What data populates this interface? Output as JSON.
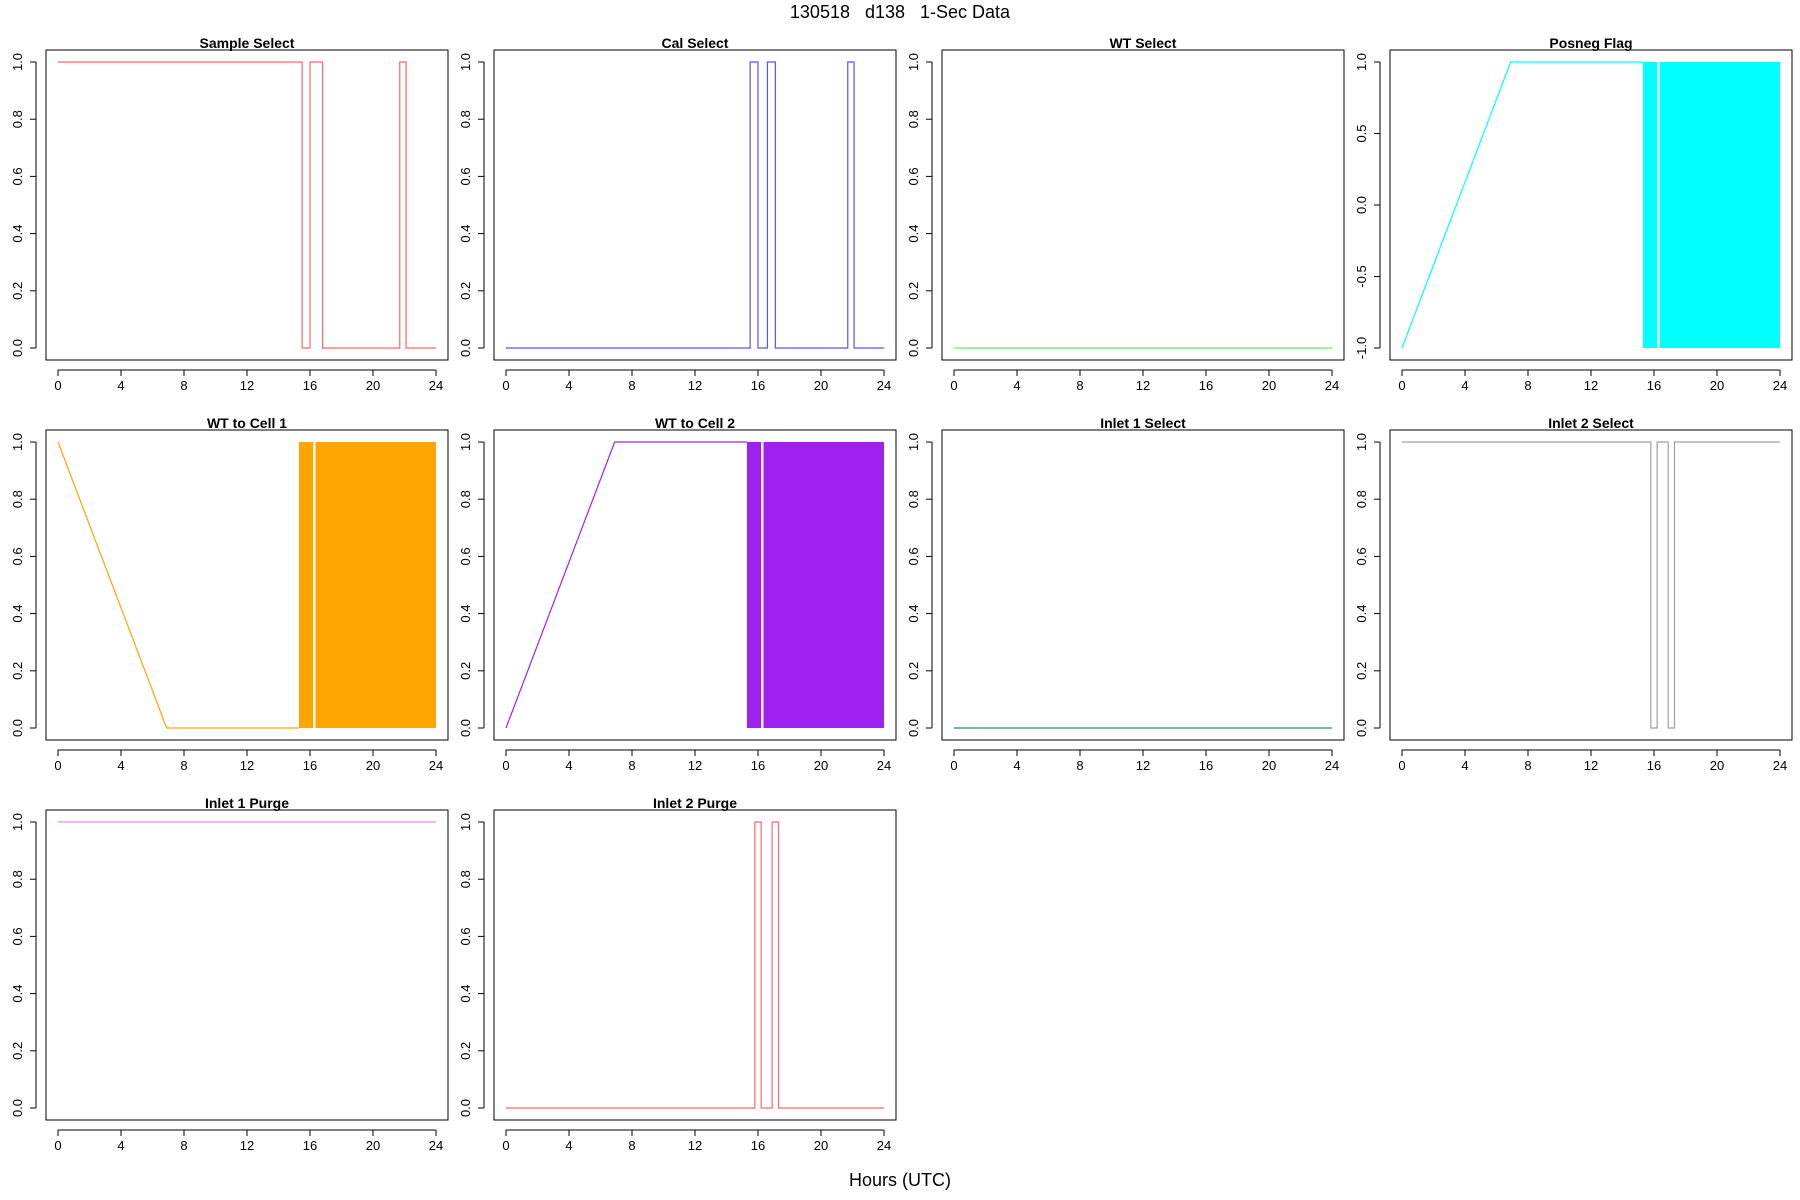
{
  "figure": {
    "title": "130518   d138   1-Sec Data",
    "xlabel": "Hours (UTC)"
  },
  "chart_data": [
    {
      "type": "line",
      "title": "Sample Select",
      "color": "#ff6666",
      "xlim": [
        0,
        24
      ],
      "ylim": [
        0,
        1
      ],
      "xticks": [
        0,
        4,
        8,
        12,
        16,
        20,
        24
      ],
      "yticks": [
        0,
        0.2,
        0.4,
        0.6,
        0.8,
        1.0
      ],
      "ytick_labels": [
        "0.0",
        "0.2",
        "0.4",
        "0.6",
        "0.8",
        "1.0"
      ],
      "series": [
        {
          "x": [
            0,
            15.5,
            15.5,
            16.0,
            16.0,
            16.8,
            16.8,
            21.7,
            21.7,
            22.1,
            22.1,
            24
          ],
          "y": [
            1,
            1,
            0,
            0,
            1,
            1,
            0,
            0,
            1,
            1,
            0,
            0
          ]
        }
      ],
      "bands": []
    },
    {
      "type": "line",
      "title": "Cal Select",
      "color": "#5555ff",
      "xlim": [
        0,
        24
      ],
      "ylim": [
        0,
        1
      ],
      "xticks": [
        0,
        4,
        8,
        12,
        16,
        20,
        24
      ],
      "yticks": [
        0,
        0.2,
        0.4,
        0.6,
        0.8,
        1.0
      ],
      "ytick_labels": [
        "0.0",
        "0.2",
        "0.4",
        "0.6",
        "0.8",
        "1.0"
      ],
      "series": [
        {
          "x": [
            0,
            15.5,
            15.5,
            16.0,
            16.0,
            16.6,
            16.6,
            17.1,
            17.1,
            21.7,
            21.7,
            22.1,
            22.1,
            24
          ],
          "y": [
            0,
            0,
            1,
            1,
            0,
            0,
            1,
            1,
            0,
            0,
            1,
            1,
            0,
            0
          ]
        }
      ],
      "bands": []
    },
    {
      "type": "line",
      "title": "WT Select",
      "color": "#66ee66",
      "xlim": [
        0,
        24
      ],
      "ylim": [
        0,
        1
      ],
      "xticks": [
        0,
        4,
        8,
        12,
        16,
        20,
        24
      ],
      "yticks": [
        0,
        0.2,
        0.4,
        0.6,
        0.8,
        1.0
      ],
      "ytick_labels": [
        "0.0",
        "0.2",
        "0.4",
        "0.6",
        "0.8",
        "1.0"
      ],
      "series": [
        {
          "x": [
            0,
            24
          ],
          "y": [
            0,
            0
          ]
        }
      ],
      "bands": []
    },
    {
      "type": "line",
      "title": "Posneg Flag",
      "color": "#00ffff",
      "xlim": [
        0,
        24
      ],
      "ylim": [
        -1,
        1
      ],
      "xticks": [
        0,
        4,
        8,
        12,
        16,
        20,
        24
      ],
      "yticks": [
        -1,
        -0.5,
        0,
        0.5,
        1
      ],
      "ytick_labels": [
        "-1.0",
        "-0.5",
        "0.0",
        "0.5",
        "1.0"
      ],
      "series": [
        {
          "x": [
            0,
            6.9,
            15.3
          ],
          "y": [
            -1,
            1,
            1
          ]
        }
      ],
      "bands": [
        {
          "x0": 15.3,
          "x1": 16.2,
          "y0": -1,
          "y1": 1
        },
        {
          "x0": 16.35,
          "x1": 24,
          "y0": -1,
          "y1": 1
        }
      ]
    },
    {
      "type": "line",
      "title": "WT to Cell 1",
      "color": "#ffa500",
      "xlim": [
        0,
        24
      ],
      "ylim": [
        0,
        1
      ],
      "xticks": [
        0,
        4,
        8,
        12,
        16,
        20,
        24
      ],
      "yticks": [
        0,
        0.2,
        0.4,
        0.6,
        0.8,
        1.0
      ],
      "ytick_labels": [
        "0.0",
        "0.2",
        "0.4",
        "0.6",
        "0.8",
        "1.0"
      ],
      "series": [
        {
          "x": [
            0,
            6.9,
            15.3
          ],
          "y": [
            1,
            0,
            0
          ]
        }
      ],
      "bands": [
        {
          "x0": 15.3,
          "x1": 16.2,
          "y0": 0,
          "y1": 1
        },
        {
          "x0": 16.35,
          "x1": 24,
          "y0": 0,
          "y1": 1
        }
      ]
    },
    {
      "type": "line",
      "title": "WT to Cell 2",
      "color": "#a020f0",
      "xlim": [
        0,
        24
      ],
      "ylim": [
        0,
        1
      ],
      "xticks": [
        0,
        4,
        8,
        12,
        16,
        20,
        24
      ],
      "yticks": [
        0,
        0.2,
        0.4,
        0.6,
        0.8,
        1.0
      ],
      "ytick_labels": [
        "0.0",
        "0.2",
        "0.4",
        "0.6",
        "0.8",
        "1.0"
      ],
      "series": [
        {
          "x": [
            0,
            6.9,
            15.3
          ],
          "y": [
            0,
            1,
            1
          ]
        }
      ],
      "bands": [
        {
          "x0": 15.3,
          "x1": 16.2,
          "y0": 0,
          "y1": 1
        },
        {
          "x0": 16.35,
          "x1": 24,
          "y0": 0,
          "y1": 1
        }
      ]
    },
    {
      "type": "line",
      "title": "Inlet 1 Select",
      "color": "#2e8b57",
      "xlim": [
        0,
        24
      ],
      "ylim": [
        0,
        1
      ],
      "xticks": [
        0,
        4,
        8,
        12,
        16,
        20,
        24
      ],
      "yticks": [
        0,
        0.2,
        0.4,
        0.6,
        0.8,
        1.0
      ],
      "ytick_labels": [
        "0.0",
        "0.2",
        "0.4",
        "0.6",
        "0.8",
        "1.0"
      ],
      "series": [
        {
          "x": [
            0,
            24
          ],
          "y": [
            0,
            0
          ]
        }
      ],
      "bands": []
    },
    {
      "type": "line",
      "title": "Inlet 2 Select",
      "color": "#a0a0a0",
      "xlim": [
        0,
        24
      ],
      "ylim": [
        0,
        1
      ],
      "xticks": [
        0,
        4,
        8,
        12,
        16,
        20,
        24
      ],
      "yticks": [
        0,
        0.2,
        0.4,
        0.6,
        0.8,
        1.0
      ],
      "ytick_labels": [
        "0.0",
        "0.2",
        "0.4",
        "0.6",
        "0.8",
        "1.0"
      ],
      "series": [
        {
          "x": [
            0,
            15.8,
            15.8,
            16.2,
            16.2,
            16.9,
            16.9,
            17.3,
            17.3,
            24
          ],
          "y": [
            1,
            1,
            0,
            0,
            1,
            1,
            0,
            0,
            1,
            1
          ]
        }
      ],
      "bands": []
    },
    {
      "type": "line",
      "title": "Inlet 1 Purge",
      "color": "#ee88ee",
      "xlim": [
        0,
        24
      ],
      "ylim": [
        0,
        1
      ],
      "xticks": [
        0,
        4,
        8,
        12,
        16,
        20,
        24
      ],
      "yticks": [
        0,
        0.2,
        0.4,
        0.6,
        0.8,
        1.0
      ],
      "ytick_labels": [
        "0.0",
        "0.2",
        "0.4",
        "0.6",
        "0.8",
        "1.0"
      ],
      "series": [
        {
          "x": [
            0,
            24
          ],
          "y": [
            1,
            1
          ]
        }
      ],
      "bands": []
    },
    {
      "type": "line",
      "title": "Inlet 2 Purge",
      "color": "#ff6666",
      "xlim": [
        0,
        24
      ],
      "ylim": [
        0,
        1
      ],
      "xticks": [
        0,
        4,
        8,
        12,
        16,
        20,
        24
      ],
      "yticks": [
        0,
        0.2,
        0.4,
        0.6,
        0.8,
        1.0
      ],
      "ytick_labels": [
        "0.0",
        "0.2",
        "0.4",
        "0.6",
        "0.8",
        "1.0"
      ],
      "series": [
        {
          "x": [
            0,
            15.8,
            15.8,
            16.2,
            16.2,
            16.9,
            16.9,
            17.3,
            17.3,
            24
          ],
          "y": [
            0,
            0,
            1,
            1,
            0,
            0,
            1,
            1,
            0,
            0
          ]
        }
      ],
      "bands": []
    }
  ]
}
